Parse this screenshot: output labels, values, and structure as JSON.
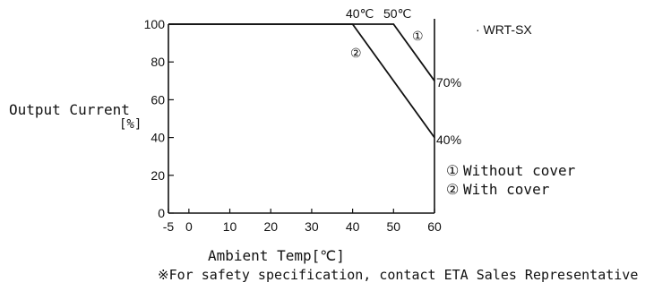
{
  "chart_data": {
    "type": "line",
    "xlabel": "Ambient Temp[℃]",
    "ylabel_line1": "Output Current",
    "ylabel_line2": "[%]",
    "xlim": [
      -5,
      60
    ],
    "ylim": [
      0,
      100
    ],
    "x_ticks": [
      -5,
      0,
      10,
      20,
      30,
      40,
      50,
      60
    ],
    "y_ticks": [
      0,
      20,
      40,
      60,
      80,
      100
    ],
    "series": [
      {
        "marker": "①",
        "values": [
          [
            -5,
            100
          ],
          [
            50,
            100
          ],
          [
            60,
            70
          ]
        ]
      },
      {
        "marker": "②",
        "values": [
          [
            -5,
            100
          ],
          [
            40,
            100
          ],
          [
            60,
            40
          ]
        ]
      }
    ],
    "annotations": {
      "knee_40": "40℃",
      "knee_50": "50℃",
      "end_70": "70%",
      "end_40": "40%"
    },
    "model_label": "· WRT-SX",
    "legend": [
      {
        "marker": "①",
        "label": "Without cover"
      },
      {
        "marker": "②",
        "label": "With cover"
      }
    ],
    "grid": false
  },
  "footnote": "※For safety specification, contact ETA Sales Representative"
}
